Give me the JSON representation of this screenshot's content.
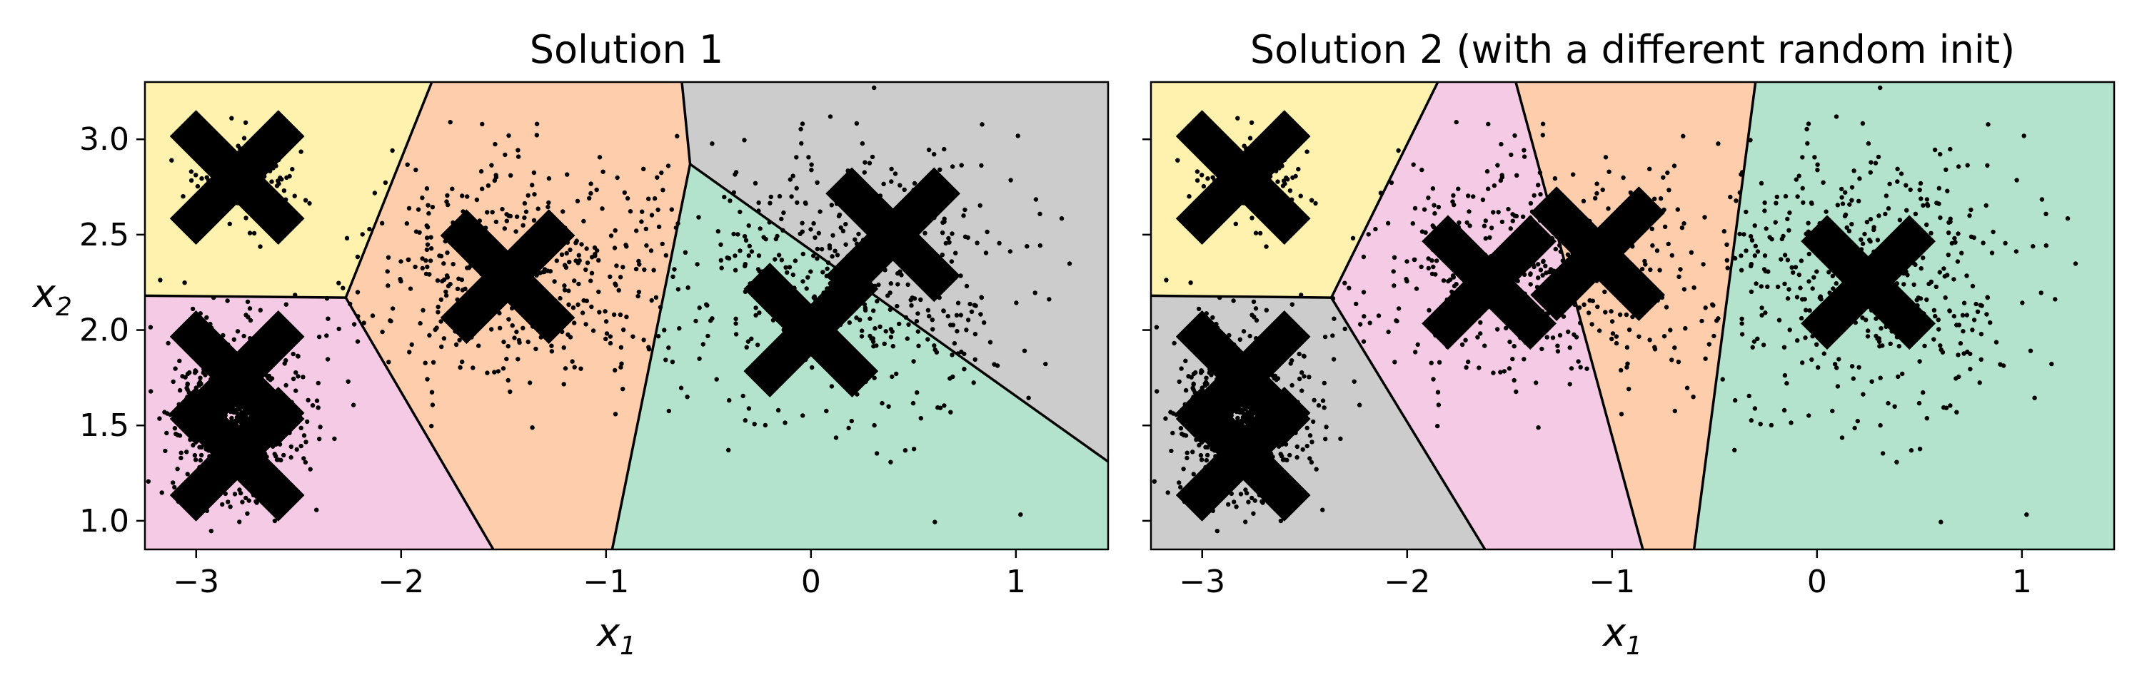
{
  "chart_data": [
    {
      "type": "scatter",
      "title": "Solution 1",
      "xlabel": "x",
      "xlabel_sub": "1",
      "ylabel": "x",
      "ylabel_sub": "2",
      "xlim": [
        -3.25,
        1.45
      ],
      "ylim": [
        0.85,
        3.3
      ],
      "xticks": [
        -3,
        -2,
        -1,
        0,
        1
      ],
      "xtick_labels": [
        "−3",
        "−2",
        "−1",
        "0",
        "1"
      ],
      "yticks": [
        1.0,
        1.5,
        2.0,
        2.5,
        3.0
      ],
      "ytick_labels": [
        "1.0",
        "1.5",
        "2.0",
        "2.5",
        "3.0"
      ],
      "grid": false,
      "show_yticklabels": true,
      "regions": [
        {
          "color": "#fff2ae",
          "polygon": [
            [
              -3.25,
              3.3
            ],
            [
              -1.85,
              3.3
            ],
            [
              -2.27,
              2.17
            ],
            [
              -3.25,
              2.18
            ]
          ]
        },
        {
          "color": "#f4cae4",
          "polygon": [
            [
              -3.25,
              2.18
            ],
            [
              -2.27,
              2.17
            ],
            [
              -1.55,
              0.85
            ],
            [
              -3.25,
              0.85
            ]
          ]
        },
        {
          "color": "#fdcdac",
          "polygon": [
            [
              -1.85,
              3.3
            ],
            [
              -0.63,
              3.3
            ],
            [
              -0.59,
              2.87
            ],
            [
              -0.97,
              0.85
            ],
            [
              -1.55,
              0.85
            ],
            [
              -2.27,
              2.17
            ]
          ]
        },
        {
          "color": "#cccccc",
          "polygon": [
            [
              -0.63,
              3.3
            ],
            [
              1.45,
              3.3
            ],
            [
              1.45,
              1.31
            ],
            [
              -0.59,
              2.87
            ]
          ]
        },
        {
          "color": "#b3e2cd",
          "polygon": [
            [
              -0.59,
              2.87
            ],
            [
              1.45,
              1.31
            ],
            [
              1.45,
              0.85
            ],
            [
              -0.97,
              0.85
            ]
          ]
        }
      ],
      "boundaries": [
        [
          [
            -1.85,
            3.3
          ],
          [
            -2.27,
            2.17
          ],
          [
            -1.55,
            0.85
          ]
        ],
        [
          [
            -3.25,
            2.18
          ],
          [
            -2.27,
            2.17
          ]
        ],
        [
          [
            -0.63,
            3.3
          ],
          [
            -0.59,
            2.87
          ],
          [
            -0.97,
            0.85
          ]
        ],
        [
          [
            -0.59,
            2.87
          ],
          [
            1.45,
            1.31
          ]
        ]
      ],
      "clusters": [
        {
          "cx": -2.8,
          "cy": 2.8,
          "sx": 0.12,
          "sy": 0.1,
          "n": 180
        },
        {
          "cx": -2.8,
          "cy": 1.55,
          "sx": 0.16,
          "sy": 0.22,
          "n": 650
        },
        {
          "cx": -1.45,
          "cy": 2.3,
          "sx": 0.4,
          "sy": 0.3,
          "n": 460
        },
        {
          "cx": 0.2,
          "cy": 2.3,
          "sx": 0.42,
          "sy": 0.38,
          "n": 480
        }
      ],
      "centroids": [
        {
          "x": -2.8,
          "y": 2.8
        },
        {
          "x": -2.8,
          "y": 1.75
        },
        {
          "x": -2.8,
          "y": 1.35
        },
        {
          "x": -1.48,
          "y": 2.28
        },
        {
          "x": 0.0,
          "y": 2.0
        },
        {
          "x": 0.4,
          "y": 2.5
        }
      ]
    },
    {
      "type": "scatter",
      "title": "Solution 2 (with a different random init)",
      "xlabel": "x",
      "xlabel_sub": "1",
      "ylabel": "",
      "ylabel_sub": "",
      "xlim": [
        -3.25,
        1.45
      ],
      "ylim": [
        0.85,
        3.3
      ],
      "xticks": [
        -3,
        -2,
        -1,
        0,
        1
      ],
      "xtick_labels": [
        "−3",
        "−2",
        "−1",
        "0",
        "1"
      ],
      "yticks": [
        1.0,
        1.5,
        2.0,
        2.5,
        3.0
      ],
      "ytick_labels": [
        "",
        "",
        "",
        "",
        ""
      ],
      "grid": false,
      "show_yticklabels": false,
      "regions": [
        {
          "color": "#fff2ae",
          "polygon": [
            [
              -3.25,
              3.3
            ],
            [
              -1.85,
              3.3
            ],
            [
              -2.37,
              2.17
            ],
            [
              -3.25,
              2.18
            ]
          ]
        },
        {
          "color": "#cccccc",
          "polygon": [
            [
              -3.25,
              2.18
            ],
            [
              -2.37,
              2.17
            ],
            [
              -1.62,
              0.85
            ],
            [
              -3.25,
              0.85
            ]
          ]
        },
        {
          "color": "#f4cae4",
          "polygon": [
            [
              -1.85,
              3.3
            ],
            [
              -1.47,
              3.3
            ],
            [
              -0.85,
              0.85
            ],
            [
              -1.62,
              0.85
            ],
            [
              -2.37,
              2.17
            ]
          ]
        },
        {
          "color": "#fdcdac",
          "polygon": [
            [
              -1.47,
              3.3
            ],
            [
              -0.3,
              3.3
            ],
            [
              -0.6,
              0.85
            ],
            [
              -0.85,
              0.85
            ]
          ]
        },
        {
          "color": "#b3e2cd",
          "polygon": [
            [
              -0.3,
              3.3
            ],
            [
              1.45,
              3.3
            ],
            [
              1.45,
              0.85
            ],
            [
              -0.6,
              0.85
            ]
          ]
        }
      ],
      "boundaries": [
        [
          [
            -1.85,
            3.3
          ],
          [
            -2.37,
            2.17
          ],
          [
            -1.62,
            0.85
          ]
        ],
        [
          [
            -3.25,
            2.18
          ],
          [
            -2.37,
            2.17
          ]
        ],
        [
          [
            -1.47,
            3.3
          ],
          [
            -0.85,
            0.85
          ]
        ],
        [
          [
            -0.3,
            3.3
          ],
          [
            -0.6,
            0.85
          ]
        ]
      ],
      "clusters": [
        {
          "cx": -2.8,
          "cy": 2.8,
          "sx": 0.12,
          "sy": 0.1,
          "n": 180
        },
        {
          "cx": -2.8,
          "cy": 1.55,
          "sx": 0.16,
          "sy": 0.22,
          "n": 650
        },
        {
          "cx": -1.45,
          "cy": 2.3,
          "sx": 0.4,
          "sy": 0.3,
          "n": 460
        },
        {
          "cx": 0.2,
          "cy": 2.3,
          "sx": 0.42,
          "sy": 0.38,
          "n": 480
        }
      ],
      "centroids": [
        {
          "x": -2.8,
          "y": 2.8
        },
        {
          "x": -2.8,
          "y": 1.75
        },
        {
          "x": -2.8,
          "y": 1.35
        },
        {
          "x": -1.6,
          "y": 2.25
        },
        {
          "x": -1.07,
          "y": 2.4
        },
        {
          "x": 0.25,
          "y": 2.25
        }
      ]
    }
  ]
}
